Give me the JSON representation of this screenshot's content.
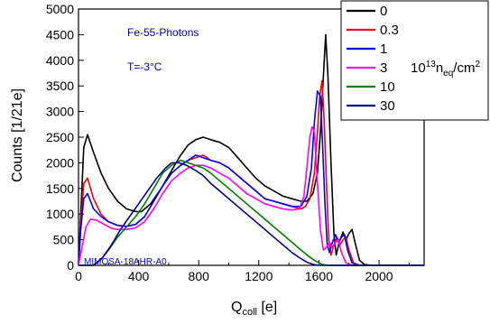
{
  "chart_data": {
    "type": "line",
    "xlabel_main": "Q",
    "xlabel_sub": "coll",
    "xlabel_unit": " [e]",
    "ylabel": "Counts [1/21e]",
    "xlim": [
      0,
      2300
    ],
    "ylim": [
      0,
      5000
    ],
    "xticks": [
      0,
      400,
      800,
      1200,
      1600,
      2000
    ],
    "yticks": [
      0,
      500,
      1000,
      1500,
      2000,
      2500,
      3000,
      3500,
      4000,
      4500,
      5000
    ],
    "annotations": {
      "source": "Fe-55-Photons",
      "temperature": "T=-3°C",
      "sensor": "MIMOSA-18AHR-A0",
      "unit_prefix": "10",
      "unit_exp": "13",
      "unit_n": "n",
      "unit_eq": "eq",
      "unit_cm": "/cm",
      "unit_cm_exp": "2"
    },
    "colors": {
      "0": "#000000",
      "0.3": "#ff0000",
      "1": "#0000ff",
      "3": "#ff00ff",
      "10": "#008000",
      "30": "#000080",
      "annotation": "#0000cc"
    },
    "series": [
      {
        "name": "0",
        "color": "#000000",
        "points": [
          [
            0,
            0
          ],
          [
            15,
            1000
          ],
          [
            35,
            2300
          ],
          [
            60,
            2550
          ],
          [
            100,
            2200
          ],
          [
            150,
            1800
          ],
          [
            200,
            1500
          ],
          [
            260,
            1250
          ],
          [
            320,
            1100
          ],
          [
            380,
            1050
          ],
          [
            420,
            1050
          ],
          [
            480,
            1200
          ],
          [
            550,
            1500
          ],
          [
            620,
            1850
          ],
          [
            680,
            2150
          ],
          [
            730,
            2350
          ],
          [
            780,
            2450
          ],
          [
            830,
            2500
          ],
          [
            880,
            2450
          ],
          [
            940,
            2400
          ],
          [
            1000,
            2300
          ],
          [
            1060,
            2100
          ],
          [
            1120,
            1900
          ],
          [
            1180,
            1700
          ],
          [
            1240,
            1550
          ],
          [
            1300,
            1450
          ],
          [
            1360,
            1350
          ],
          [
            1420,
            1300
          ],
          [
            1480,
            1250
          ],
          [
            1520,
            1250
          ],
          [
            1560,
            1400
          ],
          [
            1590,
            1800
          ],
          [
            1610,
            2600
          ],
          [
            1630,
            3700
          ],
          [
            1645,
            4500
          ],
          [
            1660,
            3700
          ],
          [
            1680,
            2000
          ],
          [
            1700,
            600
          ],
          [
            1715,
            200
          ],
          [
            1735,
            450
          ],
          [
            1760,
            650
          ],
          [
            1780,
            500
          ],
          [
            1800,
            620
          ],
          [
            1820,
            700
          ],
          [
            1840,
            450
          ],
          [
            1870,
            100
          ],
          [
            1900,
            20
          ],
          [
            1950,
            0
          ],
          [
            2300,
            0
          ]
        ]
      },
      {
        "name": "0.3",
        "color": "#ff0000",
        "points": [
          [
            0,
            0
          ],
          [
            15,
            800
          ],
          [
            35,
            1600
          ],
          [
            60,
            1700
          ],
          [
            100,
            1300
          ],
          [
            150,
            1000
          ],
          [
            200,
            850
          ],
          [
            260,
            780
          ],
          [
            320,
            760
          ],
          [
            380,
            800
          ],
          [
            440,
            950
          ],
          [
            500,
            1250
          ],
          [
            560,
            1550
          ],
          [
            620,
            1800
          ],
          [
            680,
            1950
          ],
          [
            730,
            2050
          ],
          [
            780,
            2100
          ],
          [
            830,
            2150
          ],
          [
            880,
            2050
          ],
          [
            940,
            2000
          ],
          [
            1000,
            1900
          ],
          [
            1060,
            1750
          ],
          [
            1120,
            1600
          ],
          [
            1180,
            1450
          ],
          [
            1240,
            1300
          ],
          [
            1300,
            1250
          ],
          [
            1360,
            1200
          ],
          [
            1420,
            1150
          ],
          [
            1480,
            1100
          ],
          [
            1510,
            1150
          ],
          [
            1540,
            1300
          ],
          [
            1570,
            1800
          ],
          [
            1590,
            2600
          ],
          [
            1605,
            3300
          ],
          [
            1620,
            3600
          ],
          [
            1635,
            2800
          ],
          [
            1650,
            1600
          ],
          [
            1665,
            500
          ],
          [
            1680,
            200
          ],
          [
            1700,
            400
          ],
          [
            1720,
            550
          ],
          [
            1740,
            400
          ],
          [
            1760,
            500
          ],
          [
            1780,
            550
          ],
          [
            1800,
            300
          ],
          [
            1830,
            50
          ],
          [
            1870,
            0
          ],
          [
            2300,
            0
          ]
        ]
      },
      {
        "name": "1",
        "color": "#0000ff",
        "points": [
          [
            0,
            0
          ],
          [
            15,
            700
          ],
          [
            35,
            1300
          ],
          [
            60,
            1400
          ],
          [
            100,
            1100
          ],
          [
            150,
            950
          ],
          [
            200,
            850
          ],
          [
            260,
            780
          ],
          [
            320,
            760
          ],
          [
            380,
            800
          ],
          [
            440,
            950
          ],
          [
            500,
            1250
          ],
          [
            560,
            1550
          ],
          [
            620,
            1800
          ],
          [
            680,
            1950
          ],
          [
            730,
            2050
          ],
          [
            780,
            2150
          ],
          [
            830,
            2100
          ],
          [
            880,
            2050
          ],
          [
            940,
            2000
          ],
          [
            1000,
            1900
          ],
          [
            1060,
            1750
          ],
          [
            1120,
            1600
          ],
          [
            1180,
            1450
          ],
          [
            1240,
            1300
          ],
          [
            1300,
            1250
          ],
          [
            1360,
            1200
          ],
          [
            1420,
            1150
          ],
          [
            1480,
            1150
          ],
          [
            1520,
            1350
          ],
          [
            1550,
            1900
          ],
          [
            1570,
            2800
          ],
          [
            1590,
            3400
          ],
          [
            1610,
            3300
          ],
          [
            1625,
            2300
          ],
          [
            1640,
            1200
          ],
          [
            1655,
            400
          ],
          [
            1670,
            250
          ],
          [
            1690,
            450
          ],
          [
            1710,
            600
          ],
          [
            1730,
            450
          ],
          [
            1750,
            550
          ],
          [
            1770,
            600
          ],
          [
            1790,
            300
          ],
          [
            1820,
            50
          ],
          [
            1860,
            0
          ],
          [
            2300,
            0
          ]
        ]
      },
      {
        "name": "3",
        "color": "#ff00ff",
        "points": [
          [
            0,
            0
          ],
          [
            20,
            300
          ],
          [
            50,
            750
          ],
          [
            80,
            900
          ],
          [
            120,
            880
          ],
          [
            170,
            800
          ],
          [
            220,
            720
          ],
          [
            260,
            700
          ],
          [
            320,
            700
          ],
          [
            380,
            730
          ],
          [
            440,
            850
          ],
          [
            500,
            1100
          ],
          [
            560,
            1400
          ],
          [
            620,
            1650
          ],
          [
            680,
            1800
          ],
          [
            730,
            1900
          ],
          [
            780,
            1950
          ],
          [
            830,
            1950
          ],
          [
            880,
            1900
          ],
          [
            940,
            1800
          ],
          [
            1000,
            1700
          ],
          [
            1060,
            1550
          ],
          [
            1120,
            1400
          ],
          [
            1180,
            1300
          ],
          [
            1240,
            1200
          ],
          [
            1300,
            1150
          ],
          [
            1360,
            1100
          ],
          [
            1420,
            1080
          ],
          [
            1470,
            1100
          ],
          [
            1500,
            1350
          ],
          [
            1520,
            1900
          ],
          [
            1540,
            2500
          ],
          [
            1555,
            2700
          ],
          [
            1570,
            2600
          ],
          [
            1590,
            1600
          ],
          [
            1610,
            700
          ],
          [
            1630,
            300
          ],
          [
            1650,
            350
          ],
          [
            1670,
            450
          ],
          [
            1690,
            350
          ],
          [
            1710,
            450
          ],
          [
            1730,
            500
          ],
          [
            1750,
            250
          ],
          [
            1780,
            50
          ],
          [
            1820,
            0
          ],
          [
            2300,
            0
          ]
        ]
      },
      {
        "name": "10",
        "color": "#008000",
        "points": [
          [
            0,
            0
          ],
          [
            100,
            0
          ],
          [
            150,
            120
          ],
          [
            200,
            300
          ],
          [
            260,
            550
          ],
          [
            320,
            750
          ],
          [
            380,
            950
          ],
          [
            440,
            1200
          ],
          [
            500,
            1500
          ],
          [
            560,
            1800
          ],
          [
            620,
            1950
          ],
          [
            680,
            2050
          ],
          [
            730,
            2000
          ],
          [
            780,
            1950
          ],
          [
            830,
            1900
          ],
          [
            880,
            1800
          ],
          [
            940,
            1650
          ],
          [
            1000,
            1500
          ],
          [
            1060,
            1350
          ],
          [
            1120,
            1200
          ],
          [
            1180,
            1050
          ],
          [
            1240,
            900
          ],
          [
            1300,
            750
          ],
          [
            1360,
            600
          ],
          [
            1420,
            450
          ],
          [
            1480,
            300
          ],
          [
            1530,
            180
          ],
          [
            1580,
            80
          ],
          [
            1620,
            20
          ],
          [
            1660,
            0
          ],
          [
            2300,
            0
          ]
        ]
      },
      {
        "name": "30",
        "color": "#000080",
        "points": [
          [
            0,
            0
          ],
          [
            100,
            0
          ],
          [
            160,
            150
          ],
          [
            220,
            400
          ],
          [
            280,
            700
          ],
          [
            340,
            950
          ],
          [
            400,
            1200
          ],
          [
            460,
            1450
          ],
          [
            520,
            1700
          ],
          [
            580,
            1900
          ],
          [
            620,
            2000
          ],
          [
            670,
            2000
          ],
          [
            720,
            1950
          ],
          [
            780,
            1850
          ],
          [
            830,
            1750
          ],
          [
            880,
            1600
          ],
          [
            940,
            1450
          ],
          [
            1000,
            1300
          ],
          [
            1060,
            1150
          ],
          [
            1120,
            1000
          ],
          [
            1180,
            850
          ],
          [
            1240,
            700
          ],
          [
            1300,
            550
          ],
          [
            1360,
            400
          ],
          [
            1420,
            250
          ],
          [
            1470,
            150
          ],
          [
            1520,
            60
          ],
          [
            1560,
            20
          ],
          [
            1600,
            0
          ],
          [
            2300,
            0
          ]
        ]
      }
    ],
    "legend": [
      "0",
      "0.3",
      "1",
      "3",
      "10",
      "30"
    ]
  }
}
